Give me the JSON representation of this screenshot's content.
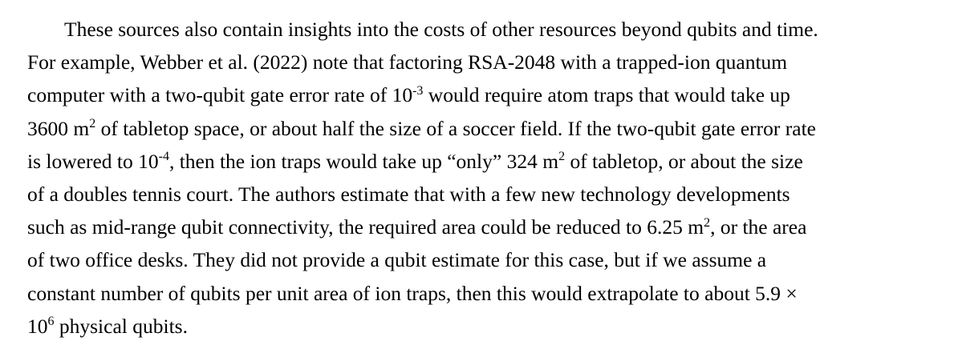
{
  "paragraph": {
    "lines": [
      {
        "parts": [
          "These sources also contain insights into the costs of other resources beyond qubits and time."
        ]
      },
      {
        "parts": [
          "For example, Webber et al. (2022) note that factoring RSA-2048 with a trapped-ion quantum"
        ]
      },
      {
        "parts": [
          "computer with a two-qubit gate error rate of 10",
          "-3",
          " would require atom traps that would take up"
        ]
      },
      {
        "parts": [
          "3600 m",
          "2",
          " of tabletop space, or about half the size of a soccer field. If the two-qubit gate error rate"
        ]
      },
      {
        "parts": [
          "is lowered to 10",
          "-4",
          ", then the ion traps would take up “only” 324 m",
          "2",
          " of tabletop, or about the size"
        ]
      },
      {
        "parts": [
          "of a doubles tennis court. The authors estimate that with a few new technology developments"
        ]
      },
      {
        "parts": [
          "such as mid-range qubit connectivity, the required area could be reduced to 6.25 m",
          "2",
          ", or the area"
        ]
      },
      {
        "parts": [
          "of two office desks. They did not provide a qubit estimate for this case, but if we assume a"
        ]
      },
      {
        "parts": [
          "constant number of qubits per unit area of ion traps, then this would extrapolate to about 5.9 ×"
        ]
      },
      {
        "parts": [
          "10",
          "6",
          " physical qubits."
        ]
      }
    ]
  }
}
